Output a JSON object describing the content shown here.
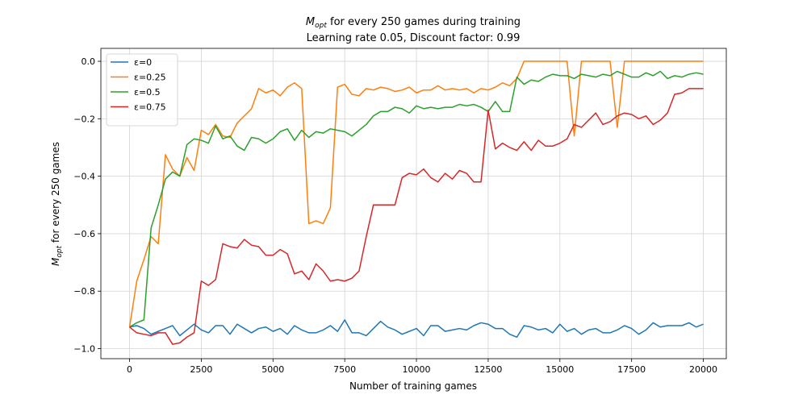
{
  "chart_data": {
    "type": "line",
    "title_main": "M",
    "title_sub": "opt",
    "title_rest": " for every 250 games during training",
    "subtitle": "Learning rate 0.05, Discount factor: 0.99",
    "xlabel": "Number of training games",
    "ylabel_main": "M",
    "ylabel_sub": "opt",
    "ylabel_rest": " for every 250 games",
    "xlim": [
      -1000,
      20800
    ],
    "ylim": [
      -1.035,
      0.045
    ],
    "xticks": [
      0,
      2500,
      5000,
      7500,
      10000,
      12500,
      15000,
      17500,
      20000
    ],
    "xtick_labels": [
      "0",
      "2500",
      "5000",
      "7500",
      "10000",
      "12500",
      "15000",
      "17500",
      "20000"
    ],
    "yticks": [
      0.0,
      -0.2,
      -0.4,
      -0.6,
      -0.8,
      -1.0
    ],
    "ytick_labels": [
      "0.0",
      "−0.2",
      "−0.4",
      "−0.6",
      "−0.8",
      "−1.0"
    ],
    "grid": true,
    "legend_position": "upper-left",
    "x_start": 0,
    "x_step": 250,
    "series": [
      {
        "name": "ε=0",
        "color": "#1f77b4",
        "values": [
          -0.925,
          -0.92,
          -0.93,
          -0.95,
          -0.94,
          -0.93,
          -0.92,
          -0.955,
          -0.935,
          -0.915,
          -0.935,
          -0.945,
          -0.92,
          -0.92,
          -0.95,
          -0.915,
          -0.93,
          -0.945,
          -0.93,
          -0.925,
          -0.94,
          -0.93,
          -0.95,
          -0.92,
          -0.935,
          -0.945,
          -0.945,
          -0.935,
          -0.92,
          -0.94,
          -0.9,
          -0.945,
          -0.945,
          -0.955,
          -0.93,
          -0.905,
          -0.925,
          -0.935,
          -0.95,
          -0.94,
          -0.93,
          -0.955,
          -0.92,
          -0.92,
          -0.94,
          -0.935,
          -0.93,
          -0.935,
          -0.92,
          -0.91,
          -0.915,
          -0.93,
          -0.93,
          -0.95,
          -0.96,
          -0.92,
          -0.925,
          -0.935,
          -0.93,
          -0.945,
          -0.915,
          -0.94,
          -0.93,
          -0.95,
          -0.935,
          -0.93,
          -0.945,
          -0.945,
          -0.935,
          -0.92,
          -0.93,
          -0.95,
          -0.935,
          -0.91,
          -0.925,
          -0.92,
          -0.92,
          -0.92,
          -0.91,
          -0.925,
          -0.915
        ]
      },
      {
        "name": "ε=0.25",
        "color": "#ff7f0e",
        "values": [
          -0.925,
          -0.765,
          -0.69,
          -0.61,
          -0.635,
          -0.325,
          -0.375,
          -0.4,
          -0.335,
          -0.38,
          -0.24,
          -0.255,
          -0.22,
          -0.26,
          -0.265,
          -0.215,
          -0.19,
          -0.165,
          -0.095,
          -0.11,
          -0.1,
          -0.12,
          -0.09,
          -0.075,
          -0.095,
          -0.565,
          -0.555,
          -0.565,
          -0.51,
          -0.09,
          -0.08,
          -0.115,
          -0.12,
          -0.095,
          -0.1,
          -0.09,
          -0.095,
          -0.105,
          -0.1,
          -0.09,
          -0.11,
          -0.1,
          -0.1,
          -0.085,
          -0.1,
          -0.095,
          -0.1,
          -0.095,
          -0.11,
          -0.095,
          -0.1,
          -0.09,
          -0.075,
          -0.085,
          -0.06,
          0.0,
          0.0,
          0.0,
          0.0,
          0.0,
          0.0,
          0.0,
          -0.26,
          0.0,
          0.0,
          0.0,
          0.0,
          0.0,
          -0.23,
          0.0,
          0.0,
          0.0,
          0.0,
          0.0,
          0.0,
          0.0,
          0.0,
          0.0,
          0.0,
          0.0,
          0.0
        ]
      },
      {
        "name": "ε=0.5",
        "color": "#2ca02c",
        "values": [
          -0.925,
          -0.91,
          -0.9,
          -0.58,
          -0.5,
          -0.41,
          -0.385,
          -0.4,
          -0.29,
          -0.27,
          -0.275,
          -0.285,
          -0.225,
          -0.27,
          -0.26,
          -0.295,
          -0.31,
          -0.265,
          -0.27,
          -0.285,
          -0.27,
          -0.245,
          -0.235,
          -0.275,
          -0.24,
          -0.265,
          -0.245,
          -0.25,
          -0.235,
          -0.24,
          -0.245,
          -0.26,
          -0.24,
          -0.22,
          -0.19,
          -0.175,
          -0.175,
          -0.16,
          -0.165,
          -0.18,
          -0.155,
          -0.165,
          -0.16,
          -0.165,
          -0.16,
          -0.16,
          -0.15,
          -0.155,
          -0.15,
          -0.16,
          -0.175,
          -0.14,
          -0.175,
          -0.175,
          -0.055,
          -0.08,
          -0.065,
          -0.07,
          -0.055,
          -0.045,
          -0.05,
          -0.05,
          -0.06,
          -0.045,
          -0.05,
          -0.055,
          -0.045,
          -0.05,
          -0.035,
          -0.045,
          -0.055,
          -0.055,
          -0.04,
          -0.05,
          -0.035,
          -0.06,
          -0.05,
          -0.055,
          -0.045,
          -0.04,
          -0.045
        ]
      },
      {
        "name": "ε=0.75",
        "color": "#d62728",
        "values": [
          -0.925,
          -0.945,
          -0.95,
          -0.955,
          -0.945,
          -0.945,
          -0.985,
          -0.98,
          -0.96,
          -0.945,
          -0.765,
          -0.78,
          -0.76,
          -0.635,
          -0.645,
          -0.65,
          -0.62,
          -0.64,
          -0.645,
          -0.675,
          -0.675,
          -0.655,
          -0.67,
          -0.74,
          -0.73,
          -0.76,
          -0.705,
          -0.73,
          -0.765,
          -0.76,
          -0.765,
          -0.755,
          -0.73,
          -0.61,
          -0.5,
          -0.5,
          -0.5,
          -0.5,
          -0.405,
          -0.39,
          -0.395,
          -0.375,
          -0.405,
          -0.42,
          -0.39,
          -0.41,
          -0.38,
          -0.39,
          -0.42,
          -0.42,
          -0.17,
          -0.305,
          -0.285,
          -0.3,
          -0.31,
          -0.28,
          -0.31,
          -0.275,
          -0.295,
          -0.295,
          -0.285,
          -0.27,
          -0.22,
          -0.23,
          -0.205,
          -0.18,
          -0.22,
          -0.21,
          -0.19,
          -0.18,
          -0.185,
          -0.2,
          -0.19,
          -0.22,
          -0.205,
          -0.18,
          -0.115,
          -0.11,
          -0.095,
          -0.095,
          -0.095
        ]
      }
    ]
  }
}
